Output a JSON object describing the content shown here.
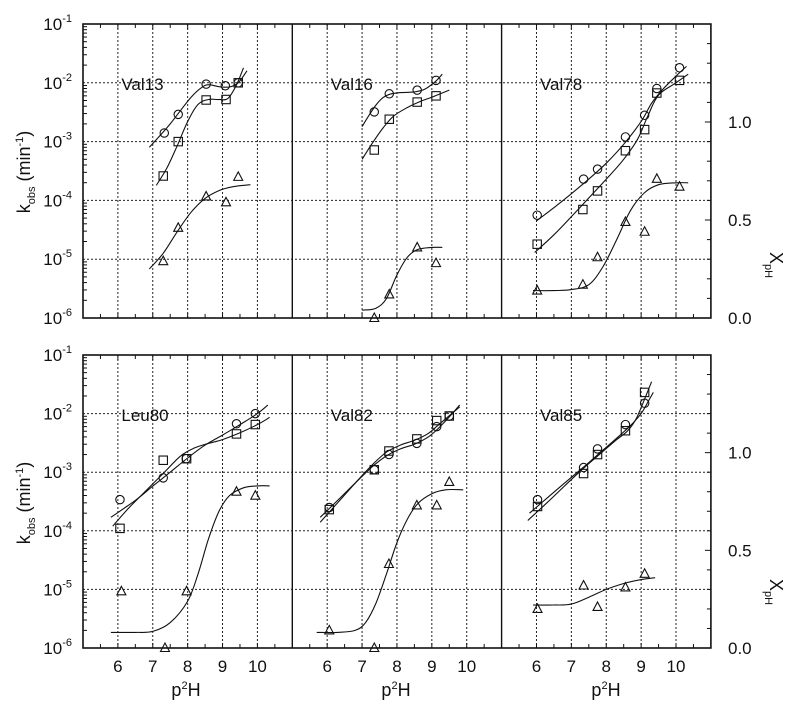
{
  "figure": {
    "left_axis_title": {
      "main": "k",
      "sub": "obs",
      "rest": " (min",
      "exp": "-1",
      "close": ")"
    },
    "right_axis_title": {
      "main": "X",
      "sub": "pH"
    },
    "x_axis_title": {
      "main": "p",
      "sup": "2",
      "rest": "H"
    },
    "left_tick_labels": [
      {
        "base": "10",
        "exp": "-1"
      },
      {
        "base": "10",
        "exp": "-2"
      },
      {
        "base": "10",
        "exp": "-3"
      },
      {
        "base": "10",
        "exp": "-4"
      },
      {
        "base": "10",
        "exp": "-5"
      },
      {
        "base": "10",
        "exp": "-6"
      }
    ],
    "right_tick_labels": [
      "1.0",
      "0.5",
      "0.0"
    ],
    "x_tick_labels": [
      "6",
      "7",
      "8",
      "9",
      "10"
    ],
    "colors": {
      "ink": "#111111",
      "background": "#ffffff"
    }
  },
  "chart_data": {
    "type": "scatter",
    "title": "",
    "layout": "2x3 panel grid with shared axes",
    "xlabel": "p2H",
    "ylabel": "kobs (min-1)",
    "ylabel_right": "X_pH",
    "xlim": [
      5,
      11
    ],
    "ylim": [
      1e-06,
      0.1
    ],
    "yscale": "log",
    "ylim_right": [
      0.0,
      1.5
    ],
    "grid": true,
    "legend": "none (markers: circle, square = kobs series on left log axis; triangle = X_pH on right linear axis)",
    "panels": [
      {
        "name": "Val13",
        "row": 0,
        "col": 0,
        "series": [
          {
            "name": "circle",
            "marker": "circle",
            "axis": "left",
            "x": [
              7.33,
              7.73,
              8.53,
              9.08,
              9.45
            ],
            "y": [
              0.0014,
              0.0029,
              0.0095,
              0.0089,
              0.01
            ],
            "fit_x": [
              6.9,
              7.2,
              7.5,
              7.8,
              8.1,
              8.4,
              8.6,
              8.9,
              9.2,
              9.45,
              9.7
            ],
            "fit_y": [
              0.0008,
              0.00125,
              0.002,
              0.0034,
              0.0057,
              0.0083,
              0.0093,
              0.0086,
              0.0085,
              0.01,
              0.016
            ]
          },
          {
            "name": "square",
            "marker": "square",
            "axis": "left",
            "x": [
              7.3,
              7.73,
              8.53,
              9.1,
              9.45
            ],
            "y": [
              0.00026,
              0.001,
              0.0051,
              0.0052,
              0.01
            ],
            "fit_x": [
              7.1,
              7.4,
              7.7,
              8.0,
              8.3,
              8.6,
              8.9,
              9.15,
              9.4,
              9.6
            ],
            "fit_y": [
              0.00018,
              0.00035,
              0.00085,
              0.0022,
              0.0043,
              0.0052,
              0.0052,
              0.0054,
              0.0092,
              0.018
            ]
          },
          {
            "name": "triangle",
            "marker": "triangle",
            "axis": "right",
            "x": [
              7.3,
              7.73,
              8.53,
              9.1,
              9.45
            ],
            "y": [
              0.29,
              0.46,
              0.62,
              0.59,
              0.72
            ],
            "fit_x": [
              6.9,
              7.3,
              7.7,
              8.1,
              8.5,
              8.9,
              9.3,
              9.8
            ],
            "fit_y": [
              0.25,
              0.33,
              0.44,
              0.54,
              0.61,
              0.65,
              0.67,
              0.68
            ]
          }
        ]
      },
      {
        "name": "Val16",
        "row": 0,
        "col": 1,
        "series": [
          {
            "name": "circle",
            "marker": "circle",
            "axis": "left",
            "x": [
              7.35,
              7.78,
              8.58,
              9.12
            ],
            "y": [
              0.0032,
              0.0065,
              0.0075,
              0.011
            ],
            "fit_x": [
              7.0,
              7.2,
              7.4,
              7.6,
              7.8,
              8.1,
              8.5,
              8.8,
              9.1,
              9.3
            ],
            "fit_y": [
              0.0018,
              0.0028,
              0.0042,
              0.0056,
              0.0064,
              0.0068,
              0.007,
              0.0078,
              0.0105,
              0.014
            ]
          },
          {
            "name": "square",
            "marker": "square",
            "axis": "left",
            "x": [
              7.35,
              7.78,
              8.58,
              9.12
            ],
            "y": [
              0.00072,
              0.0024,
              0.0047,
              0.006
            ],
            "fit_x": [
              7.0,
              7.3,
              7.6,
              7.9,
              8.3,
              8.7,
              9.0,
              9.5
            ],
            "fit_y": [
              0.0005,
              0.00095,
              0.0017,
              0.0027,
              0.0038,
              0.0049,
              0.0057,
              0.0075
            ]
          },
          {
            "name": "triangle",
            "marker": "triangle",
            "axis": "right",
            "x": [
              7.35,
              7.78,
              8.58,
              9.12
            ],
            "y": [
              0.0,
              0.12,
              0.36,
              0.28
            ],
            "fit_x": [
              7.0,
              7.4,
              7.7,
              8.0,
              8.3,
              8.6,
              9.0,
              9.3
            ],
            "fit_y": [
              0.04,
              0.05,
              0.1,
              0.22,
              0.31,
              0.35,
              0.36,
              0.36
            ]
          }
        ]
      },
      {
        "name": "Val78",
        "row": 0,
        "col": 2,
        "series": [
          {
            "name": "circle",
            "marker": "circle",
            "axis": "left",
            "x": [
              6.02,
              7.35,
              7.75,
              8.55,
              9.1,
              9.45,
              10.1
            ],
            "y": [
              5.6e-05,
              0.00023,
              0.00034,
              0.0012,
              0.0028,
              0.008,
              0.018
            ],
            "fit_x": [
              6.0,
              6.5,
              7.0,
              7.5,
              8.0,
              8.5,
              9.0,
              9.3,
              9.6,
              10.0,
              10.3
            ],
            "fit_y": [
              4.5e-05,
              7.5e-05,
              0.00013,
              0.00023,
              0.00043,
              0.0009,
              0.0022,
              0.0045,
              0.0075,
              0.013,
              0.019
            ]
          },
          {
            "name": "square",
            "marker": "square",
            "axis": "left",
            "x": [
              6.02,
              7.33,
              7.75,
              8.55,
              9.1,
              9.45,
              10.1
            ],
            "y": [
              1.8e-05,
              7e-05,
              0.000145,
              0.0007,
              0.0016,
              0.0067,
              0.011
            ],
            "fit_x": [
              5.95,
              6.5,
              7.0,
              7.5,
              8.0,
              8.5,
              8.9,
              9.2,
              9.5,
              10.0,
              10.35
            ],
            "fit_y": [
              1.3e-05,
              2.6e-05,
              5.3e-05,
              0.00011,
              0.00023,
              0.0005,
              0.0011,
              0.0028,
              0.0062,
              0.01,
              0.014
            ]
          },
          {
            "name": "triangle",
            "marker": "triangle",
            "axis": "right",
            "x": [
              6.02,
              7.33,
              7.75,
              8.55,
              9.1,
              9.45,
              10.1
            ],
            "y": [
              0.14,
              0.17,
              0.31,
              0.49,
              0.44,
              0.71,
              0.67
            ],
            "fit_x": [
              5.9,
              6.5,
              7.0,
              7.5,
              7.9,
              8.3,
              8.7,
              9.1,
              9.5,
              10.0,
              10.35
            ],
            "fit_y": [
              0.14,
              0.14,
              0.145,
              0.17,
              0.26,
              0.4,
              0.55,
              0.64,
              0.68,
              0.69,
              0.69
            ]
          }
        ]
      },
      {
        "name": "Leu80",
        "row": 1,
        "col": 0,
        "series": [
          {
            "name": "circle",
            "marker": "circle",
            "axis": "left",
            "x": [
              6.06,
              7.3,
              7.96,
              9.4,
              9.94
            ],
            "y": [
              0.00034,
              0.0008,
              0.0017,
              0.0067,
              0.01
            ],
            "fit_x": [
              5.8,
              6.5,
              7.0,
              7.5,
              8.0,
              8.5,
              9.0,
              9.5,
              10.0,
              10.3
            ],
            "fit_y": [
              0.00017,
              0.00033,
              0.00058,
              0.001,
              0.00175,
              0.0029,
              0.0043,
              0.0065,
              0.01,
              0.014
            ]
          },
          {
            "name": "square",
            "marker": "square",
            "axis": "left",
            "x": [
              6.06,
              7.3,
              7.97,
              9.4,
              9.94
            ],
            "y": [
              0.00011,
              0.0016,
              0.0017,
              0.0045,
              0.0065
            ],
            "fit_x": [
              5.85,
              6.3,
              6.8,
              7.3,
              7.8,
              8.2,
              8.6,
              9.0,
              9.5,
              10.0,
              10.35
            ],
            "fit_y": [
              0.00012,
              0.00024,
              0.00048,
              0.00095,
              0.0019,
              0.0026,
              0.0031,
              0.0036,
              0.0047,
              0.0065,
              0.0086
            ]
          },
          {
            "name": "triangle",
            "marker": "triangle",
            "axis": "right",
            "x": [
              6.1,
              7.35,
              7.97,
              9.4,
              9.94
            ],
            "y": [
              0.29,
              0.0,
              0.29,
              0.8,
              0.78
            ],
            "fit_x": [
              5.8,
              6.5,
              7.0,
              7.5,
              8.0,
              8.3,
              8.6,
              8.9,
              9.2,
              9.6,
              10.0,
              10.35
            ],
            "fit_y": [
              0.08,
              0.08,
              0.085,
              0.13,
              0.24,
              0.38,
              0.56,
              0.7,
              0.78,
              0.82,
              0.83,
              0.83
            ]
          }
        ]
      },
      {
        "name": "Val82",
        "row": 1,
        "col": 1,
        "series": [
          {
            "name": "circle",
            "marker": "circle",
            "axis": "left",
            "x": [
              6.06,
              7.35,
              7.77,
              8.57,
              9.14,
              9.5
            ],
            "y": [
              0.00025,
              0.0011,
              0.002,
              0.0031,
              0.006,
              0.0091
            ],
            "fit_x": [
              5.8,
              6.3,
              6.8,
              7.3,
              7.7,
              8.1,
              8.5,
              8.9,
              9.2,
              9.5,
              9.8
            ],
            "fit_y": [
              0.00017,
              0.00033,
              0.00065,
              0.00125,
              0.0019,
              0.0025,
              0.003,
              0.004,
              0.0057,
              0.0088,
              0.014
            ]
          },
          {
            "name": "square",
            "marker": "square",
            "axis": "left",
            "x": [
              6.06,
              7.35,
              7.77,
              8.57,
              9.14,
              9.5
            ],
            "y": [
              0.00023,
              0.0011,
              0.0023,
              0.0037,
              0.0076,
              0.0091
            ],
            "fit_x": [
              5.8,
              6.3,
              6.8,
              7.3,
              7.7,
              8.1,
              8.5,
              8.9,
              9.2,
              9.5,
              9.8
            ],
            "fit_y": [
              0.00014,
              0.0003,
              0.00065,
              0.00135,
              0.0022,
              0.0029,
              0.0035,
              0.0046,
              0.0065,
              0.0092,
              0.013
            ]
          },
          {
            "name": "triangle",
            "marker": "triangle",
            "axis": "right",
            "x": [
              6.06,
              7.35,
              7.77,
              8.57,
              9.14,
              9.5
            ],
            "y": [
              0.09,
              0.0,
              0.43,
              0.73,
              0.73,
              0.85
            ],
            "fit_x": [
              5.7,
              6.3,
              6.8,
              7.1,
              7.4,
              7.7,
              8.0,
              8.3,
              8.6,
              9.0,
              9.4,
              9.9
            ],
            "fit_y": [
              0.08,
              0.08,
              0.09,
              0.13,
              0.23,
              0.38,
              0.54,
              0.66,
              0.74,
              0.79,
              0.81,
              0.81
            ]
          }
        ]
      },
      {
        "name": "Val85",
        "row": 1,
        "col": 2,
        "series": [
          {
            "name": "circle",
            "marker": "circle",
            "axis": "left",
            "x": [
              6.03,
              7.35,
              7.75,
              8.55,
              9.1
            ],
            "y": [
              0.00034,
              0.0012,
              0.0025,
              0.0065,
              0.015
            ],
            "fit_x": [
              5.8,
              6.3,
              6.8,
              7.3,
              7.8,
              8.3,
              8.7,
              9.0,
              9.2,
              9.35
            ],
            "fit_y": [
              0.0002,
              0.00036,
              0.00065,
              0.00115,
              0.0021,
              0.0038,
              0.0063,
              0.01,
              0.016,
              0.023
            ]
          },
          {
            "name": "square",
            "marker": "square",
            "axis": "left",
            "x": [
              6.03,
              7.35,
              7.75,
              8.55,
              9.1
            ],
            "y": [
              0.00026,
              0.00095,
              0.002,
              0.0051,
              0.023
            ],
            "fit_x": [
              5.75,
              6.3,
              6.8,
              7.3,
              7.8,
              8.3,
              8.6,
              8.85,
              9.05,
              9.3
            ],
            "fit_y": [
              0.00015,
              0.0003,
              0.00058,
              0.0011,
              0.002,
              0.0036,
              0.005,
              0.008,
              0.015,
              0.035
            ]
          },
          {
            "name": "triangle",
            "marker": "triangle",
            "axis": "right",
            "x": [
              6.03,
              7.35,
              7.75,
              8.55,
              9.1
            ],
            "y": [
              0.2,
              0.32,
              0.21,
              0.31,
              0.38
            ],
            "fit_x": [
              5.9,
              6.5,
              7.0,
              7.5,
              8.0,
              8.5,
              9.0,
              9.4
            ],
            "fit_y": [
              0.22,
              0.22,
              0.225,
              0.26,
              0.3,
              0.33,
              0.35,
              0.36
            ]
          }
        ]
      }
    ]
  }
}
